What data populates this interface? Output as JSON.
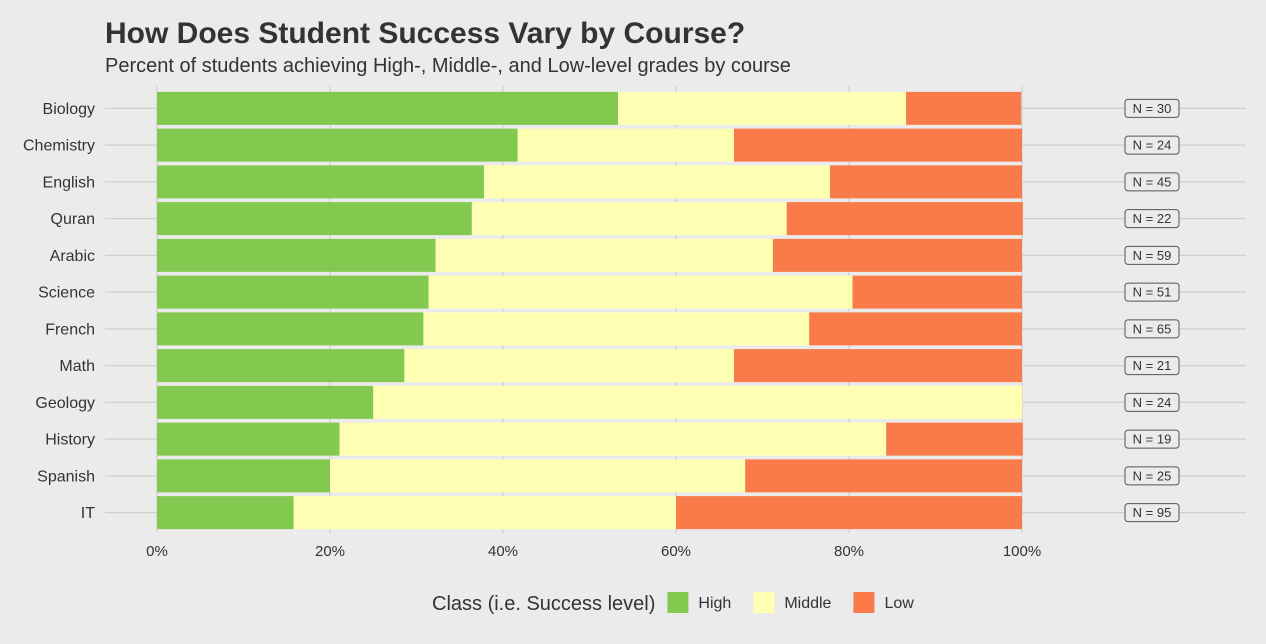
{
  "chart_data": {
    "type": "bar",
    "orientation": "horizontal",
    "stacked": "percent",
    "title": "How Does Student Success Vary by Course?",
    "subtitle": "Percent of students achieving High-, Middle-, and Low-level grades by course",
    "categories": [
      "Biology",
      "Chemistry",
      "English",
      "Quran",
      "Arabic",
      "Science",
      "French",
      "Math",
      "Geology",
      "History",
      "Spanish",
      "IT"
    ],
    "series": [
      {
        "name": "High",
        "color": "#84c94f",
        "values": [
          53.3,
          41.7,
          37.8,
          36.4,
          32.2,
          31.4,
          30.8,
          28.6,
          25.0,
          21.1,
          20.0,
          15.8
        ]
      },
      {
        "name": "Middle",
        "color": "#ffffb3",
        "values": [
          33.3,
          25.0,
          40.0,
          36.4,
          39.0,
          49.0,
          44.6,
          38.1,
          75.0,
          63.2,
          48.0,
          44.2
        ]
      },
      {
        "name": "Low",
        "color": "#f97b4a",
        "values": [
          13.3,
          33.3,
          22.2,
          27.3,
          28.8,
          19.6,
          24.6,
          33.3,
          0.0,
          15.8,
          32.0,
          40.0
        ]
      }
    ],
    "n_labels": [
      "N = 30",
      "N = 24",
      "N = 45",
      "N = 22",
      "N = 59",
      "N = 51",
      "N = 65",
      "N = 21",
      "N = 24",
      "N = 19",
      "N = 25",
      "N = 95"
    ],
    "x_ticks": [
      "0%",
      "20%",
      "40%",
      "60%",
      "80%",
      "100%"
    ],
    "xlim": [
      0,
      100
    ],
    "grid": true,
    "legend": {
      "title": "Class (i.e. Success level)",
      "placement": "bottom",
      "items": [
        "High",
        "Middle",
        "Low"
      ]
    },
    "background": "#ebebeb",
    "gridline_color": "#cfcfcf"
  }
}
